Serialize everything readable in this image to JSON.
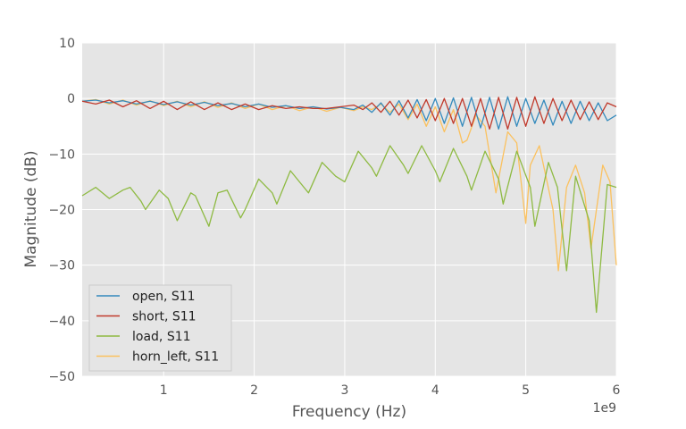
{
  "chart_data": {
    "type": "line",
    "title": "",
    "xlabel": "Frequency (Hz)",
    "ylabel": "Magnitude (dB)",
    "x_offset_label": "1e9",
    "xlim": [
      0.1,
      6.0
    ],
    "ylim": [
      -50,
      10
    ],
    "x_ticks": [
      {
        "value": 1,
        "label": "1"
      },
      {
        "value": 2,
        "label": "2"
      },
      {
        "value": 3,
        "label": "3"
      },
      {
        "value": 4,
        "label": "4"
      },
      {
        "value": 5,
        "label": "5"
      },
      {
        "value": 6,
        "label": "6"
      }
    ],
    "y_ticks": [
      {
        "value": 10,
        "label": "10"
      },
      {
        "value": 0,
        "label": "0"
      },
      {
        "value": -10,
        "label": "−10"
      },
      {
        "value": -20,
        "label": "−20"
      },
      {
        "value": -30,
        "label": "−30"
      },
      {
        "value": -40,
        "label": "−40"
      },
      {
        "value": -50,
        "label": "−50"
      }
    ],
    "grid": true,
    "legend_position": "lower-left",
    "background": "#e5e5e5",
    "series": [
      {
        "name": "open, S11",
        "color": "#348abd",
        "x": [
          0.1,
          0.25,
          0.4,
          0.55,
          0.7,
          0.85,
          1.0,
          1.15,
          1.3,
          1.45,
          1.6,
          1.75,
          1.9,
          2.05,
          2.2,
          2.35,
          2.5,
          2.65,
          2.8,
          2.95,
          3.1,
          3.2,
          3.3,
          3.4,
          3.5,
          3.6,
          3.7,
          3.8,
          3.9,
          4.0,
          4.1,
          4.2,
          4.3,
          4.4,
          4.5,
          4.6,
          4.7,
          4.8,
          4.9,
          5.0,
          5.1,
          5.2,
          5.3,
          5.4,
          5.5,
          5.6,
          5.7,
          5.8,
          5.9,
          6.0
        ],
        "y": [
          -0.5,
          -0.3,
          -0.8,
          -0.4,
          -1.0,
          -0.5,
          -1.1,
          -0.6,
          -1.2,
          -0.7,
          -1.3,
          -0.9,
          -1.5,
          -1.0,
          -1.6,
          -1.3,
          -1.8,
          -1.5,
          -1.9,
          -1.6,
          -2.0,
          -1.2,
          -2.5,
          -0.8,
          -3.0,
          -0.4,
          -3.5,
          -0.2,
          -4.0,
          0.0,
          -4.5,
          0.1,
          -5.0,
          0.2,
          -5.3,
          0.2,
          -5.5,
          0.3,
          -5.0,
          0.0,
          -4.5,
          -0.3,
          -4.8,
          -0.5,
          -4.5,
          -0.5,
          -4.0,
          -0.8,
          -4.0,
          -3.0
        ]
      },
      {
        "name": "short, S11",
        "color": "#c0392b",
        "x": [
          0.1,
          0.25,
          0.4,
          0.55,
          0.7,
          0.85,
          1.0,
          1.15,
          1.3,
          1.45,
          1.6,
          1.75,
          1.9,
          2.05,
          2.2,
          2.35,
          2.5,
          2.65,
          2.8,
          2.95,
          3.1,
          3.2,
          3.3,
          3.4,
          3.5,
          3.6,
          3.7,
          3.8,
          3.9,
          4.0,
          4.1,
          4.2,
          4.3,
          4.4,
          4.5,
          4.6,
          4.7,
          4.8,
          4.9,
          5.0,
          5.1,
          5.2,
          5.3,
          5.4,
          5.5,
          5.6,
          5.7,
          5.8,
          5.9,
          6.0
        ],
        "y": [
          -0.5,
          -1.0,
          -0.3,
          -1.5,
          -0.4,
          -1.8,
          -0.5,
          -2.0,
          -0.6,
          -2.0,
          -0.8,
          -2.0,
          -1.0,
          -2.0,
          -1.3,
          -1.8,
          -1.5,
          -1.8,
          -1.8,
          -1.5,
          -1.2,
          -2.0,
          -0.8,
          -2.5,
          -0.5,
          -3.0,
          -0.3,
          -3.5,
          -0.2,
          -4.0,
          0.0,
          -4.5,
          0.0,
          -5.0,
          0.0,
          -5.5,
          0.2,
          -5.5,
          0.2,
          -5.0,
          0.3,
          -4.5,
          0.0,
          -4.0,
          -0.3,
          -3.8,
          -0.6,
          -3.8,
          -0.8,
          -1.5
        ]
      },
      {
        "name": "load, S11",
        "color": "#8eba42",
        "x": [
          0.1,
          0.25,
          0.4,
          0.55,
          0.63,
          0.75,
          0.8,
          0.95,
          1.05,
          1.15,
          1.3,
          1.35,
          1.5,
          1.6,
          1.7,
          1.85,
          1.9,
          2.05,
          2.2,
          2.25,
          2.4,
          2.55,
          2.6,
          2.75,
          2.9,
          3.0,
          3.15,
          3.3,
          3.35,
          3.5,
          3.65,
          3.7,
          3.85,
          4.0,
          4.05,
          4.2,
          4.35,
          4.4,
          4.55,
          4.7,
          4.75,
          4.9,
          5.05,
          5.1,
          5.25,
          5.35,
          5.45,
          5.55,
          5.7,
          5.78,
          5.9,
          6.0
        ],
        "y": [
          -17.5,
          -16.0,
          -18.0,
          -16.5,
          -16.0,
          -18.5,
          -20.0,
          -16.5,
          -18.0,
          -22.0,
          -17.0,
          -17.5,
          -23.0,
          -17.0,
          -16.5,
          -21.5,
          -20.0,
          -14.5,
          -17.0,
          -19.0,
          -13.0,
          -16.0,
          -17.0,
          -11.5,
          -14.0,
          -15.0,
          -9.5,
          -12.5,
          -14.0,
          -8.5,
          -12.0,
          -13.5,
          -8.5,
          -13.0,
          -15.0,
          -9.0,
          -14.0,
          -16.5,
          -9.5,
          -14.5,
          -19.0,
          -9.5,
          -16.0,
          -23.0,
          -11.5,
          -16.0,
          -31.0,
          -14.0,
          -22.0,
          -38.5,
          -15.5,
          -16.0
        ]
      },
      {
        "name": "horn_left, S11",
        "color": "#fbc15e",
        "x": [
          0.1,
          0.25,
          0.4,
          0.55,
          0.7,
          0.85,
          1.0,
          1.15,
          1.3,
          1.45,
          1.6,
          1.75,
          1.9,
          2.05,
          2.2,
          2.35,
          2.5,
          2.65,
          2.8,
          2.95,
          3.1,
          3.2,
          3.3,
          3.4,
          3.5,
          3.6,
          3.7,
          3.8,
          3.9,
          4.0,
          4.1,
          4.2,
          4.3,
          4.35,
          4.45,
          4.55,
          4.67,
          4.8,
          4.9,
          5.0,
          5.05,
          5.15,
          5.3,
          5.36,
          5.45,
          5.55,
          5.65,
          5.72,
          5.85,
          5.93,
          6.0
        ],
        "y": [
          -0.5,
          -0.2,
          -1.0,
          -0.3,
          -1.2,
          -0.4,
          -1.3,
          -0.5,
          -1.5,
          -0.6,
          -1.6,
          -0.8,
          -1.8,
          -1.0,
          -2.0,
          -1.3,
          -2.2,
          -1.5,
          -2.3,
          -1.6,
          -2.2,
          -1.5,
          -2.0,
          -1.0,
          -2.5,
          -1.0,
          -3.8,
          -1.0,
          -5.0,
          -1.5,
          -6.0,
          -2.0,
          -8.0,
          -7.5,
          -3.0,
          -5.0,
          -17.0,
          -6.0,
          -8.0,
          -22.5,
          -12.0,
          -8.5,
          -20.0,
          -31.0,
          -16.0,
          -12.0,
          -17.0,
          -27.0,
          -12.0,
          -15.0,
          -30.0
        ]
      }
    ]
  }
}
